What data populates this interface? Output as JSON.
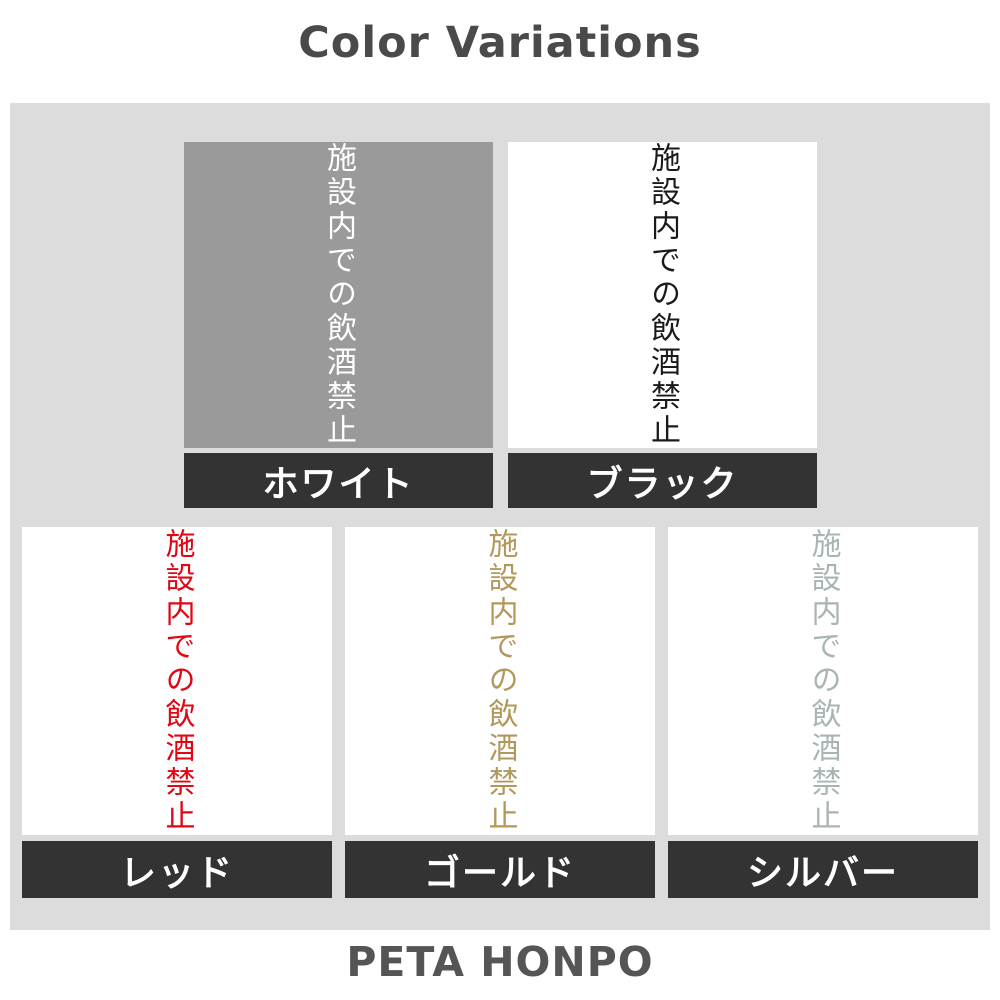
{
  "header": {
    "title": "Color Variations"
  },
  "footer": {
    "brand": "PETA HONPO"
  },
  "product_text": "施設内での飲酒禁止",
  "colors": {
    "page_bg": "#ffffff",
    "panel_bg": "#dcdcdc",
    "label_bg": "#333333",
    "label_text": "#ffffff",
    "title_text": "#4a4a4a",
    "footer_text": "#555555"
  },
  "variations": [
    {
      "name": "white",
      "label": "ホワイト",
      "swatch_bg": "#9a9a9a",
      "text_color": "#ffffff"
    },
    {
      "name": "black",
      "label": "ブラック",
      "swatch_bg": "#ffffff",
      "text_color": "#1a1a1a"
    },
    {
      "name": "red",
      "label": "レッド",
      "swatch_bg": "#ffffff",
      "text_color": "#e00613"
    },
    {
      "name": "gold",
      "label": "ゴールド",
      "swatch_bg": "#ffffff",
      "text_color": "#b3985c"
    },
    {
      "name": "silver",
      "label": "シルバー",
      "swatch_bg": "#ffffff",
      "text_color": "#a9b4b4"
    }
  ]
}
